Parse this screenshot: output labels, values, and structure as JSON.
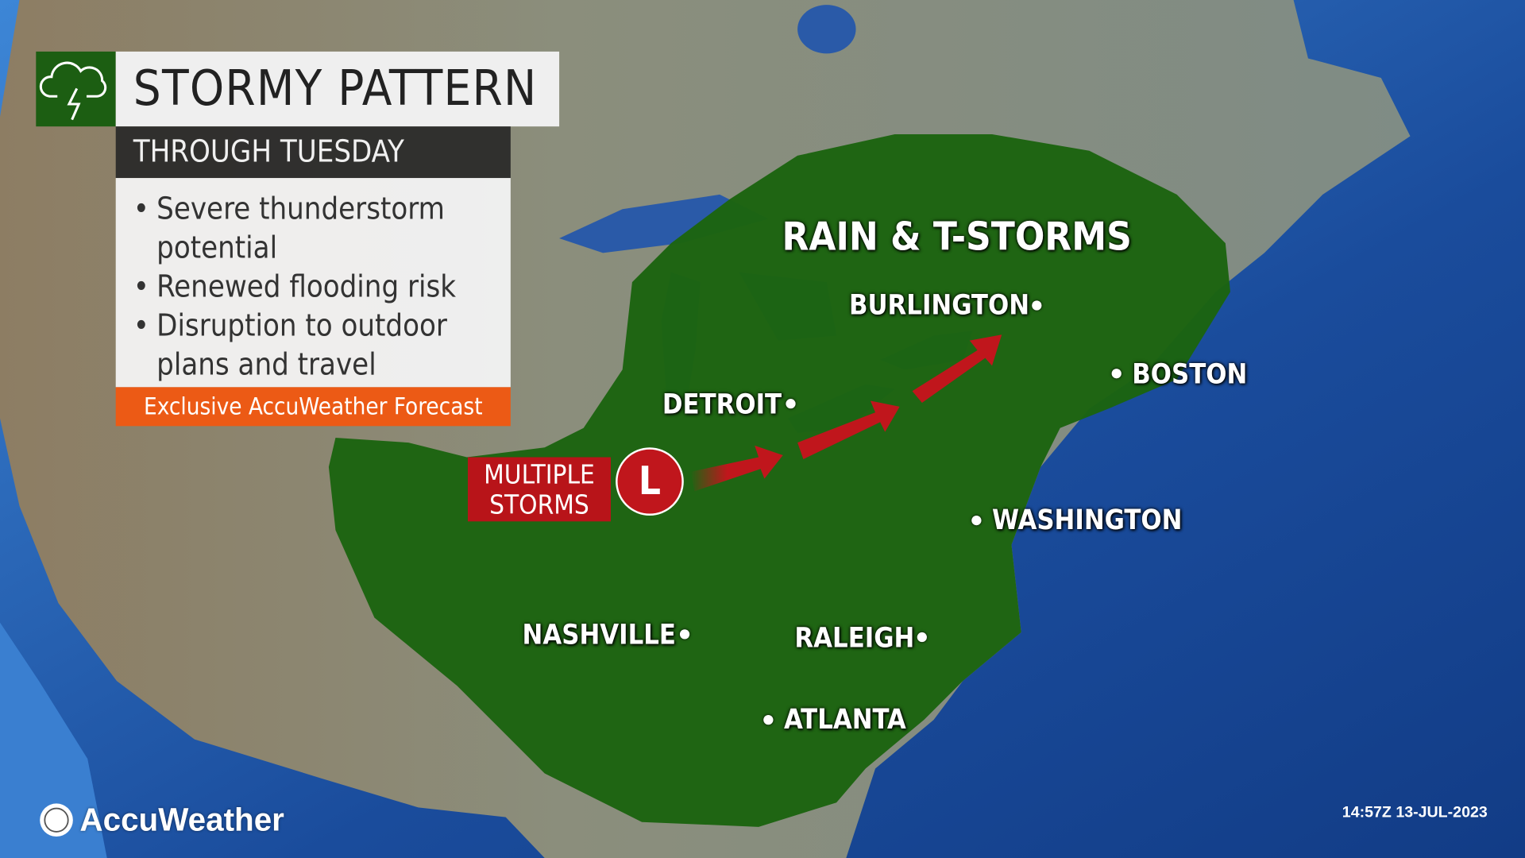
{
  "header": {
    "icon": "cloud-lightning-icon",
    "title": "STORMY PATTERN",
    "subtitle": "THROUGH TUESDAY"
  },
  "bullets": [
    "Severe thunderstorm potential",
    "Renewed flooding risk",
    "Disruption to outdoor plans and travel"
  ],
  "banner": "Exclusive AccuWeather Forecast",
  "map": {
    "area_label": "RAIN & T-STORMS",
    "storm_label_line1": "MULTIPLE",
    "storm_label_line2": "STORMS",
    "low_symbol": "L",
    "cities": [
      "BURLINGTON",
      "BOSTON",
      "DETROIT",
      "WASHINGTON",
      "NASHVILLE",
      "RALEIGH",
      "ATLANTA"
    ],
    "colors": {
      "rain_area": "#1c6410",
      "storm": "#c0161c",
      "ocean": "#1d55a8",
      "land": "#8a8e7a"
    }
  },
  "brand": {
    "logo": "AccuWeather"
  },
  "timestamp": "14:57Z 13-JUL-2023"
}
